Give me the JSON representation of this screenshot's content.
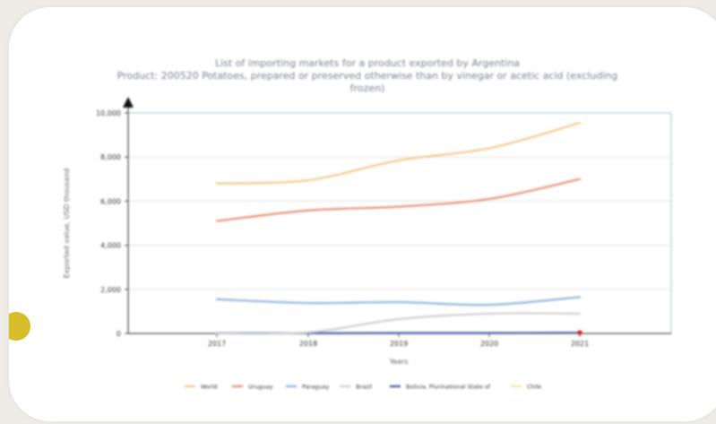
{
  "chart_data": {
    "type": "line",
    "title": "List of importing markets for a product exported by Argentina",
    "subtitle_lines": [
      "Product: 200520 Potatoes, prepared or preserved otherwise than by vinegar or acetic acid (excluding",
      "frozen)"
    ],
    "xlabel": "Years",
    "ylabel": "Exported value, USD thousand",
    "x": [
      "2017",
      "2018",
      "2019",
      "2020",
      "2021"
    ],
    "ylim": [
      0,
      10000
    ],
    "y_ticks": [
      "0",
      "2,000",
      "4,000",
      "6,000",
      "8,000",
      "10,000"
    ],
    "grid": true,
    "legend_position": "bottom",
    "series": [
      {
        "name": "World",
        "color": "#f5c88a",
        "values": [
          6800,
          6950,
          7850,
          8400,
          9550
        ]
      },
      {
        "name": "Uruguay",
        "color": "#e89078",
        "values": [
          5100,
          5580,
          5750,
          6100,
          7000
        ]
      },
      {
        "name": "Paraguay",
        "color": "#8fb5de",
        "values": [
          1550,
          1380,
          1420,
          1300,
          1650
        ]
      },
      {
        "name": "Brazil",
        "color": "#cfcfcf",
        "values": [
          0,
          50,
          650,
          900,
          900
        ]
      },
      {
        "name": "Bolivia, Plurinational State of",
        "color": "#3f5fa8",
        "values": [
          10,
          10,
          20,
          20,
          30
        ]
      },
      {
        "name": "Chile",
        "color": "#fbe3a3",
        "values": [
          0,
          0,
          0,
          0,
          0
        ]
      }
    ]
  }
}
